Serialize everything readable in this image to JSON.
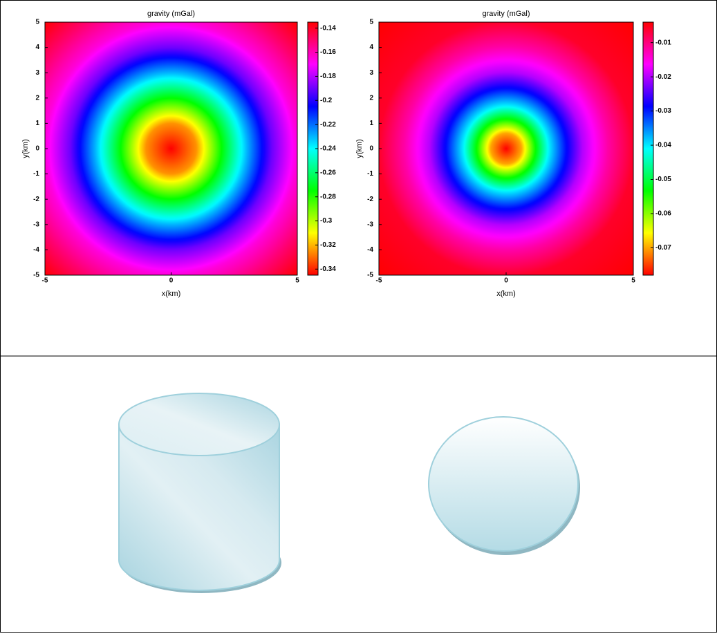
{
  "chart_data": [
    {
      "type": "heatmap",
      "title": "gravity (mGal)",
      "x_label": "x(km)",
      "y_label": "y(km)",
      "xlim": [
        -5,
        5
      ],
      "ylim": [
        -5,
        5
      ],
      "xticks": [
        -5,
        0,
        5
      ],
      "yticks": [
        -5,
        -4,
        -3,
        -2,
        -1,
        0,
        1,
        2,
        3,
        4,
        5
      ],
      "colormap": "hsv",
      "clim": [
        -0.345,
        -0.135
      ],
      "cticks": [
        -0.34,
        -0.32,
        -0.3,
        -0.28,
        -0.26,
        -0.24,
        -0.22,
        -0.2,
        -0.18,
        -0.16,
        -0.14
      ],
      "center": [
        0,
        0
      ],
      "profile": {
        "r": [
          0,
          1,
          2,
          3,
          4,
          5,
          6,
          7.1
        ],
        "values": [
          -0.345,
          -0.325,
          -0.275,
          -0.23,
          -0.19,
          -0.165,
          -0.15,
          -0.135
        ]
      }
    },
    {
      "type": "heatmap",
      "title": "gravity (mGal)",
      "x_label": "x(km)",
      "y_label": "y(km)",
      "xlim": [
        -5,
        5
      ],
      "ylim": [
        -5,
        5
      ],
      "xticks": [
        -5,
        0,
        5
      ],
      "yticks": [
        -5,
        -4,
        -3,
        -2,
        -1,
        0,
        1,
        2,
        3,
        4,
        5
      ],
      "colormap": "hsv",
      "clim": [
        -0.078,
        -0.004
      ],
      "cticks": [
        -0.07,
        -0.06,
        -0.05,
        -0.04,
        -0.03,
        -0.02,
        -0.01
      ],
      "center": [
        0,
        0
      ],
      "profile": {
        "r": [
          0,
          0.6,
          1.1,
          1.7,
          2.3,
          3,
          4,
          5,
          7.1
        ],
        "values": [
          -0.078,
          -0.07,
          -0.055,
          -0.04,
          -0.03,
          -0.02,
          -0.012,
          -0.006,
          -0.004
        ]
      }
    }
  ]
}
